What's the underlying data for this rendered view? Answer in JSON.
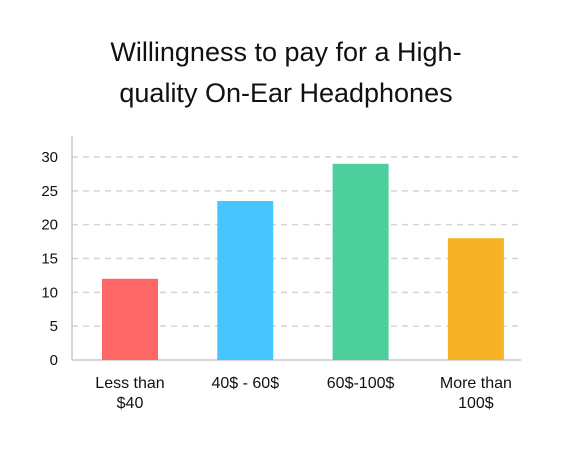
{
  "chart_data": {
    "type": "bar",
    "title_lines": [
      "Willingness to pay for a High-",
      "quality On-Ear Headphones"
    ],
    "categories": [
      [
        "Less than",
        "$40"
      ],
      [
        "40$ - 60$"
      ],
      [
        "60$-100$"
      ],
      [
        "More than",
        "100$"
      ]
    ],
    "values": [
      12,
      23.5,
      29,
      18
    ],
    "colors": [
      "#FF6767",
      "#47C5FF",
      "#4DCF9D",
      "#F5B325"
    ],
    "ylim": [
      0,
      30
    ],
    "yticks": [
      0,
      5,
      10,
      15,
      20,
      25,
      30
    ],
    "grid": true,
    "xlabel": "",
    "ylabel": ""
  }
}
